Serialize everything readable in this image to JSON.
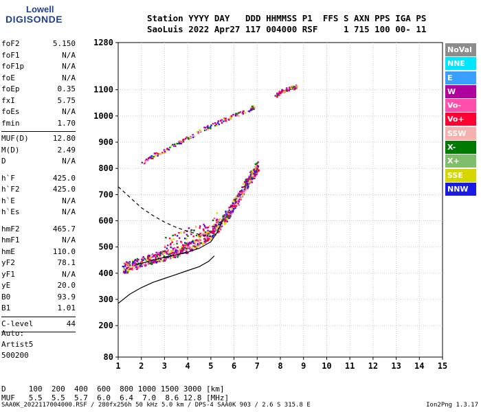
{
  "logo": {
    "line1": "Lowell",
    "line2": "DIGISONDE"
  },
  "header": {
    "labels_line": "Station YYYY DAY   DDD HHMMSS P1  FFS S AXN PPS IGA PS",
    "values_line": "SaoLuis 2022 Apr27 117 004000 RSF     1 715 100 00- 11"
  },
  "params_a": [
    {
      "name": "foF2",
      "value": "5.150"
    },
    {
      "name": "foF1",
      "value": "N/A"
    },
    {
      "name": "foF1p",
      "value": "N/A"
    },
    {
      "name": "foE",
      "value": "N/A"
    },
    {
      "name": "foEp",
      "value": "0.35"
    },
    {
      "name": "fxI",
      "value": "5.75"
    },
    {
      "name": "foEs",
      "value": "N/A"
    },
    {
      "name": "fmin",
      "value": "1.70"
    }
  ],
  "params_b": [
    {
      "name": "MUF(D)",
      "value": "12.80"
    },
    {
      "name": "M(D)",
      "value": "2.49"
    },
    {
      "name": "D",
      "value": "N/A"
    }
  ],
  "params_c": [
    {
      "name": "h`F",
      "value": "425.0"
    },
    {
      "name": "h`F2",
      "value": "425.0"
    },
    {
      "name": "h`E",
      "value": "N/A"
    },
    {
      "name": "h`Es",
      "value": "N/A"
    }
  ],
  "params_d": [
    {
      "name": "hmF2",
      "value": "465.7"
    },
    {
      "name": "hmF1",
      "value": "N/A"
    },
    {
      "name": "hmE",
      "value": "110.0"
    },
    {
      "name": "yF2",
      "value": "78.1"
    },
    {
      "name": "yF1",
      "value": "N/A"
    },
    {
      "name": "yE",
      "value": "20.0"
    },
    {
      "name": "B0",
      "value": "93.9"
    },
    {
      "name": "B1",
      "value": "1.01"
    }
  ],
  "clevel": {
    "name": "C-level",
    "value": "44"
  },
  "auto": {
    "line1": "Auto:",
    "line2": "Artist5",
    "line3": "500200"
  },
  "legend": [
    {
      "label": "NoVal",
      "color": "#8c8c8c"
    },
    {
      "label": "NNE",
      "color": "#00e6ff"
    },
    {
      "label": "E",
      "color": "#3aa0ff"
    },
    {
      "label": "W",
      "color": "#b0009e"
    },
    {
      "label": "Vo-",
      "color": "#ff4faa"
    },
    {
      "label": "Vo+",
      "color": "#ff0033"
    },
    {
      "label": "SSW",
      "color": "#f6b1ae"
    },
    {
      "label": "X-",
      "color": "#007a00"
    },
    {
      "label": "X+",
      "color": "#7fbf6a"
    },
    {
      "label": "SSE",
      "color": "#d7d700"
    },
    {
      "label": "NNW",
      "color": "#1a1ae6"
    }
  ],
  "bottom": {
    "d_line": "D     100  200  400  600  800 1000 1500 3000 [km]",
    "muf_line": "MUF   5.5  5.5  5.7  6.0  6.4  7.0  8.6 12.8 [MHz]"
  },
  "footer": {
    "left": "SAA0K_2022117004000.RSF / 280fx256h 50 kHz 5.0 km / DPS-4 SAA0K 903 / 2.6 S 315.8 E",
    "right": "Ion2Png 1.3.17"
  },
  "chart_data": {
    "type": "scatter",
    "title": "",
    "xlabel": "",
    "ylabel": "",
    "xlim": [
      1,
      15
    ],
    "ylim": [
      80,
      1280
    ],
    "x_ticks": [
      1,
      2,
      3,
      4,
      5,
      6,
      7,
      8,
      9,
      10,
      11,
      12,
      13,
      14,
      15
    ],
    "y_ticks": [
      80,
      200,
      300,
      400,
      500,
      600,
      700,
      800,
      900,
      1000,
      1100,
      1280
    ],
    "grid": true,
    "echo_traces": [
      {
        "name": "F2 O-trace",
        "points": [
          [
            1.2,
            420
          ],
          [
            1.6,
            435
          ],
          [
            2.0,
            445
          ],
          [
            2.5,
            460
          ],
          [
            3.0,
            470
          ],
          [
            3.5,
            485
          ],
          [
            4.0,
            500
          ],
          [
            4.5,
            525
          ],
          [
            5.0,
            555
          ],
          [
            5.5,
            600
          ],
          [
            5.8,
            640
          ],
          [
            6.1,
            680
          ],
          [
            6.5,
            740
          ],
          [
            6.8,
            780
          ],
          [
            7.0,
            810
          ]
        ]
      },
      {
        "name": "F2 second hop",
        "points": [
          [
            2.0,
            820
          ],
          [
            2.5,
            850
          ],
          [
            3.0,
            870
          ],
          [
            3.5,
            895
          ],
          [
            4.0,
            920
          ],
          [
            4.5,
            945
          ],
          [
            5.0,
            965
          ],
          [
            5.5,
            985
          ],
          [
            6.0,
            1005
          ],
          [
            6.5,
            1020
          ],
          [
            6.9,
            1040
          ]
        ]
      },
      {
        "name": "High returns",
        "points": [
          [
            7.8,
            1080
          ],
          [
            8.0,
            1095
          ],
          [
            8.2,
            1100
          ],
          [
            8.5,
            1110
          ],
          [
            8.7,
            1115
          ]
        ]
      },
      {
        "name": "Spread cluster",
        "points": [
          [
            3.0,
            510
          ],
          [
            3.5,
            530
          ],
          [
            4.0,
            550
          ],
          [
            4.5,
            560
          ],
          [
            5.0,
            580
          ],
          [
            5.3,
            610
          ]
        ]
      }
    ],
    "profile_line": [
      [
        1.0,
        285
      ],
      [
        1.5,
        320
      ],
      [
        2.0,
        345
      ],
      [
        2.5,
        365
      ],
      [
        3.0,
        380
      ],
      [
        3.5,
        395
      ],
      [
        4.0,
        410
      ],
      [
        4.5,
        425
      ],
      [
        4.9,
        445
      ],
      [
        5.15,
        466
      ]
    ],
    "dashed_line": [
      [
        1.0,
        730
      ],
      [
        1.5,
        690
      ],
      [
        2.0,
        650
      ],
      [
        2.5,
        620
      ],
      [
        3.0,
        595
      ],
      [
        3.5,
        575
      ],
      [
        4.0,
        560
      ],
      [
        4.5,
        548
      ],
      [
        5.0,
        540
      ]
    ],
    "trace_line": [
      [
        1.7,
        430
      ],
      [
        2.5,
        450
      ],
      [
        3.2,
        465
      ],
      [
        4.0,
        480
      ],
      [
        4.5,
        495
      ],
      [
        5.0,
        520
      ],
      [
        5.3,
        560
      ],
      [
        5.5,
        600
      ]
    ]
  }
}
